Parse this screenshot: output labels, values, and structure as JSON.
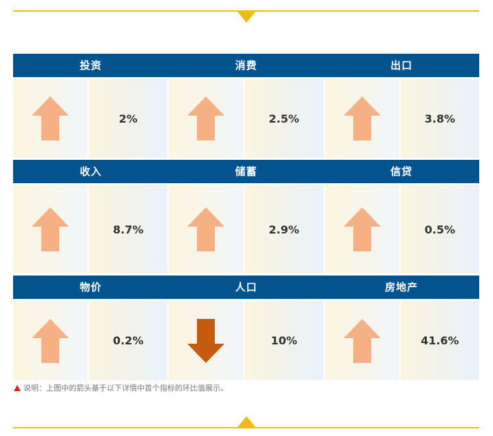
{
  "colors": {
    "accent": "#f2bb14",
    "header_bg": "#03538f",
    "arrow_up": "#f5b183",
    "arrow_down": "#c55a11"
  },
  "rows": [
    {
      "items": [
        {
          "label": "投资",
          "value": "2%",
          "direction": "up"
        },
        {
          "label": "消费",
          "value": "2.5%",
          "direction": "up"
        },
        {
          "label": "出口",
          "value": "3.8%",
          "direction": "up"
        }
      ]
    },
    {
      "items": [
        {
          "label": "收入",
          "value": "8.7%",
          "direction": "up"
        },
        {
          "label": "储蓄",
          "value": "2.9%",
          "direction": "up"
        },
        {
          "label": "信贷",
          "value": "0.5%",
          "direction": "up"
        }
      ]
    },
    {
      "items": [
        {
          "label": "物价",
          "value": "0.2%",
          "direction": "up"
        },
        {
          "label": "人口",
          "value": "10%",
          "direction": "down"
        },
        {
          "label": "房地产",
          "value": "41.6%",
          "direction": "up"
        }
      ]
    }
  ],
  "note": "说明：上图中的箭头基于以下详情中首个指标的环比值展示。"
}
